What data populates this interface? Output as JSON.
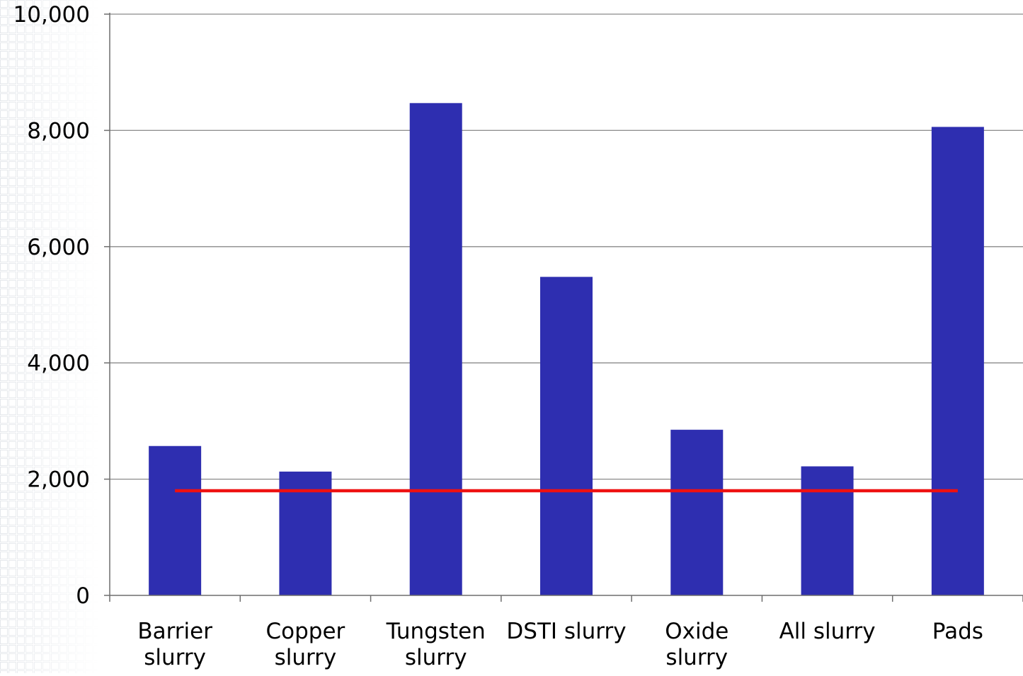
{
  "chart_data": {
    "type": "bar",
    "title": "",
    "xlabel": "",
    "ylabel": "",
    "ylim": [
      0,
      10000
    ],
    "yticks": [
      0,
      2000,
      4000,
      6000,
      8000,
      10000
    ],
    "ytick_labels": [
      "0",
      "2,000",
      "4,000",
      "6,000",
      "8,000",
      "10,000"
    ],
    "categories": [
      [
        "Barrier",
        "slurry"
      ],
      [
        "Copper",
        "slurry"
      ],
      [
        "Tungsten",
        "slurry"
      ],
      [
        "DSTI slurry"
      ],
      [
        "Oxide",
        "slurry"
      ],
      [
        "All slurry"
      ],
      [
        "Pads"
      ]
    ],
    "values": [
      2570,
      2130,
      8470,
      5480,
      2850,
      2220,
      8060
    ],
    "reference_line": {
      "value": 1800,
      "color": "#ee1111"
    },
    "grid": true,
    "legend": "none",
    "colors": {
      "bar": "#2e2eb0",
      "grid": "#8a8a8a",
      "axis": "#6e6e6e"
    }
  }
}
